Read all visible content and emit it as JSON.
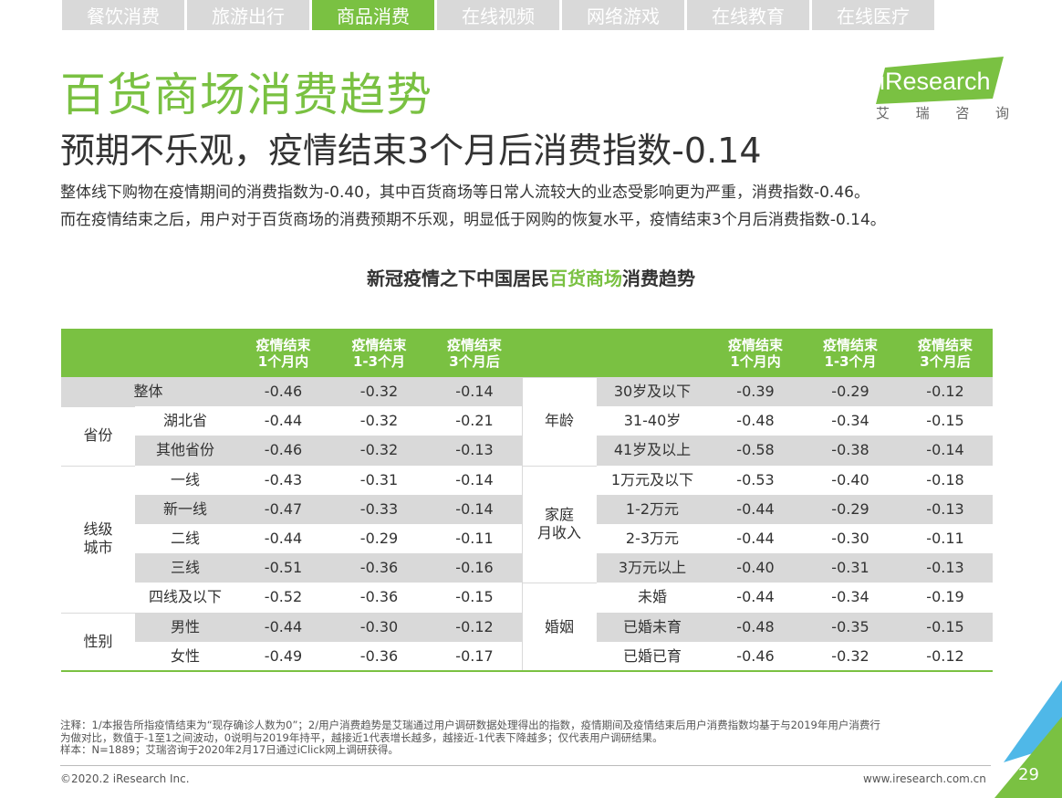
{
  "tabs": [
    "餐饮消费",
    "旅游出行",
    "商品消费",
    "在线视频",
    "网络游戏",
    "在线教育",
    "在线医疗"
  ],
  "active_tab": 2,
  "title": "百货商场消费趋势",
  "subtitle": "预期不乐观，疫情结束3个月后消费指数-0.14",
  "paragraph": [
    "整体线下购物在疫情期间的消费指数为-0.40，其中百货商场等日常人流较大的业态受影响更为严重，消费指数-0.46。",
    "而在疫情结束之后，用户对于百货商场的消费预期不乐观，明显低于网购的恢复水平，疫情结束3个月后消费指数-0.14。"
  ],
  "logo": {
    "brand": "iResearch",
    "cn": [
      "艾",
      "瑞",
      "咨",
      "询"
    ]
  },
  "table_title": {
    "pre": "新冠疫情之下中国居民",
    "highlight": "百货商场",
    "post": "消费趋势"
  },
  "table": {
    "headers": [
      [
        "疫情结束",
        "1个月内"
      ],
      [
        "疫情结束",
        "1-3个月"
      ],
      [
        "疫情结束",
        "3个月后"
      ]
    ],
    "left": [
      {
        "group": "",
        "label": "整体",
        "values": [
          "-0.46",
          "-0.32",
          "-0.14"
        ]
      },
      {
        "group": "省份",
        "label": "湖北省",
        "values": [
          "-0.44",
          "-0.32",
          "-0.21"
        ]
      },
      {
        "group": "省份",
        "label": "其他省份",
        "values": [
          "-0.46",
          "-0.32",
          "-0.13"
        ]
      },
      {
        "group": "线级城市",
        "label": "一线",
        "values": [
          "-0.43",
          "-0.31",
          "-0.14"
        ]
      },
      {
        "group": "线级城市",
        "label": "新一线",
        "values": [
          "-0.47",
          "-0.33",
          "-0.14"
        ]
      },
      {
        "group": "线级城市",
        "label": "二线",
        "values": [
          "-0.44",
          "-0.29",
          "-0.11"
        ]
      },
      {
        "group": "线级城市",
        "label": "三线",
        "values": [
          "-0.51",
          "-0.36",
          "-0.16"
        ]
      },
      {
        "group": "线级城市",
        "label": "四线及以下",
        "values": [
          "-0.52",
          "-0.36",
          "-0.15"
        ]
      },
      {
        "group": "性别",
        "label": "男性",
        "values": [
          "-0.44",
          "-0.30",
          "-0.12"
        ]
      },
      {
        "group": "性别",
        "label": "女性",
        "values": [
          "-0.49",
          "-0.36",
          "-0.17"
        ]
      }
    ],
    "left_groups": [
      {
        "name": "省份",
        "lines": [
          "省份"
        ],
        "start": 1,
        "span": 2
      },
      {
        "name": "线级城市",
        "lines": [
          "线级",
          "城市"
        ],
        "start": 3,
        "span": 5
      },
      {
        "name": "性别",
        "lines": [
          "性别"
        ],
        "start": 8,
        "span": 2
      }
    ],
    "right": [
      {
        "group": "年龄",
        "label": "30岁及以下",
        "values": [
          "-0.39",
          "-0.29",
          "-0.12"
        ]
      },
      {
        "group": "年龄",
        "label": "31-40岁",
        "values": [
          "-0.48",
          "-0.34",
          "-0.15"
        ]
      },
      {
        "group": "年龄",
        "label": "41岁及以上",
        "values": [
          "-0.58",
          "-0.38",
          "-0.14"
        ]
      },
      {
        "group": "家庭月收入",
        "label": "1万元及以下",
        "values": [
          "-0.53",
          "-0.40",
          "-0.18"
        ]
      },
      {
        "group": "家庭月收入",
        "label": "1-2万元",
        "values": [
          "-0.44",
          "-0.29",
          "-0.13"
        ]
      },
      {
        "group": "家庭月收入",
        "label": "2-3万元",
        "values": [
          "-0.44",
          "-0.30",
          "-0.11"
        ]
      },
      {
        "group": "家庭月收入",
        "label": "3万元以上",
        "values": [
          "-0.40",
          "-0.31",
          "-0.13"
        ]
      },
      {
        "group": "婚姻",
        "label": "未婚",
        "values": [
          "-0.44",
          "-0.34",
          "-0.19"
        ]
      },
      {
        "group": "婚姻",
        "label": "已婚未育",
        "values": [
          "-0.48",
          "-0.35",
          "-0.15"
        ]
      },
      {
        "group": "婚姻",
        "label": "已婚已育",
        "values": [
          "-0.46",
          "-0.32",
          "-0.12"
        ]
      }
    ],
    "right_groups": [
      {
        "name": "年龄",
        "lines": [
          "年龄"
        ],
        "start": 0,
        "span": 3
      },
      {
        "name": "家庭月收入",
        "lines": [
          "家庭",
          "月收入"
        ],
        "start": 3,
        "span": 4
      },
      {
        "name": "婚姻",
        "lines": [
          "婚姻"
        ],
        "start": 7,
        "span": 3
      }
    ]
  },
  "notes": [
    "注释：1/本报告所指疫情结束为“现存确诊人数为0”；2/用户消费趋势是艾瑞通过用户调研数据处理得出的指数，疫情期间及疫情结束后用户消费指数均基于与2019年用户消费行",
    "为做对比，数值于-1至1之间波动，0说明与2019年持平，越接近1代表增长越多，越接近-1代表下降越多；仅代表用户调研结果。",
    "样本：N=1889；艾瑞咨询于2020年2月17日通过iClick网上调研获得。"
  ],
  "footer": {
    "copyright": "©2020.2 iResearch Inc.",
    "url": "www.iresearch.com.cn",
    "page": "29"
  },
  "colors": {
    "accent": "#7ac142",
    "gray": "#d9d9d9",
    "text": "#333333",
    "corner_blue": "#4fb8e8"
  }
}
